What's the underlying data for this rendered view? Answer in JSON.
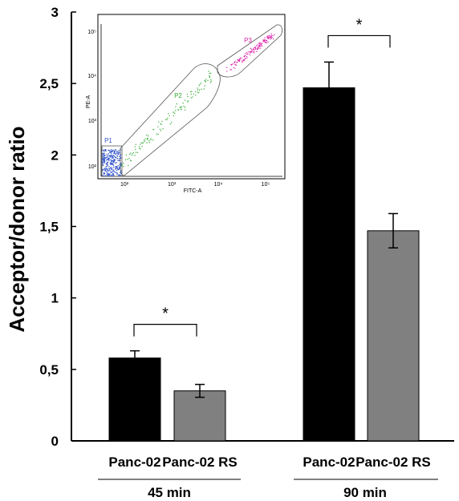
{
  "chart_data": {
    "type": "bar",
    "ylabel": "Acceptor/donor ratio",
    "ylim": [
      0,
      3
    ],
    "yticks": [
      "0",
      "0,5",
      "1",
      "1,5",
      "2",
      "2,5",
      "3"
    ],
    "groups": [
      {
        "label": "45 min",
        "significance": "*",
        "bars": [
          {
            "label": "Panc-02",
            "value": 0.58,
            "error": 0.05,
            "color": "#000000"
          },
          {
            "label": "Panc-02 RS",
            "value": 0.35,
            "error": 0.045,
            "color": "#808080"
          }
        ]
      },
      {
        "label": "90 min",
        "significance": "*",
        "bars": [
          {
            "label": "Panc-02",
            "value": 2.47,
            "error": 0.18,
            "color": "#000000"
          },
          {
            "label": "Panc-02 RS",
            "value": 1.47,
            "error": 0.12,
            "color": "#808080"
          }
        ]
      }
    ],
    "inset": {
      "xlabel": "FITC-A",
      "ylabel": "PE-A",
      "gates": [
        {
          "name": "P1",
          "color": "#3355cc"
        },
        {
          "name": "P2",
          "color": "#33aa33"
        },
        {
          "name": "P3",
          "color": "#dd22aa"
        }
      ],
      "xticks": [
        "10²",
        "10³",
        "10⁴",
        "10⁵"
      ],
      "yticks": [
        "10²",
        "10³",
        "10⁴",
        "10⁵"
      ]
    }
  }
}
